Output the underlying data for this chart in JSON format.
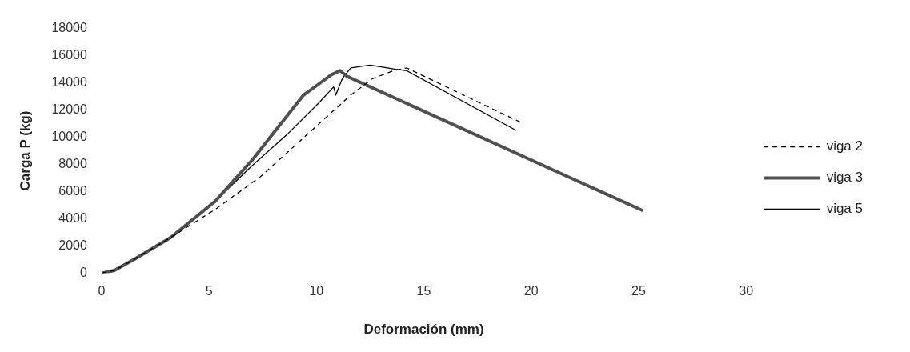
{
  "chart_data": {
    "type": "line",
    "xlabel": "Deformación (mm)",
    "ylabel": "Carga P (kg)",
    "xlim": [
      0,
      30
    ],
    "xticks": [
      0,
      5,
      10,
      15,
      20,
      25,
      30
    ],
    "ylim": [
      0,
      18000
    ],
    "yticks": [
      0,
      2000,
      4000,
      6000,
      8000,
      10000,
      12000,
      14000,
      16000,
      18000
    ],
    "grid": false,
    "legend": "right",
    "marker": "none",
    "series": [
      {
        "name": "viga 2",
        "color": "#000000",
        "line_style": "dashed",
        "x": [
          0,
          0.6,
          1.5,
          3.2,
          5.3,
          7.4,
          9.5,
          11.6,
          12.6,
          13.6,
          14.2,
          19.5
        ],
        "values": [
          0,
          200,
          1000,
          2600,
          4700,
          7100,
          10100,
          13100,
          14300,
          14900,
          15100,
          11100
        ]
      },
      {
        "name": "viga 3",
        "color": "#505050",
        "line_style": "solid",
        "x": [
          0,
          0.6,
          1.5,
          3.2,
          5.3,
          7.0,
          8.1,
          9.4,
          10.1,
          10.7,
          11.1,
          11.4,
          21.7,
          25.2
        ],
        "values": [
          0,
          200,
          1000,
          2600,
          5300,
          8300,
          10500,
          13100,
          13900,
          14600,
          14900,
          14500,
          7100,
          4600
        ]
      },
      {
        "name": "viga 5",
        "color": "#000000",
        "line_style": "solid",
        "x": [
          0,
          0.6,
          1.5,
          3.2,
          5.3,
          7.0,
          8.7,
          10.1,
          10.8,
          10.9,
          11.2,
          11.6,
          12.5,
          13.7,
          14.2,
          19.3
        ],
        "values": [
          0,
          200,
          1000,
          2600,
          5300,
          7900,
          10300,
          12500,
          13700,
          13100,
          14300,
          15100,
          15300,
          15000,
          14900,
          10500
        ]
      }
    ]
  }
}
